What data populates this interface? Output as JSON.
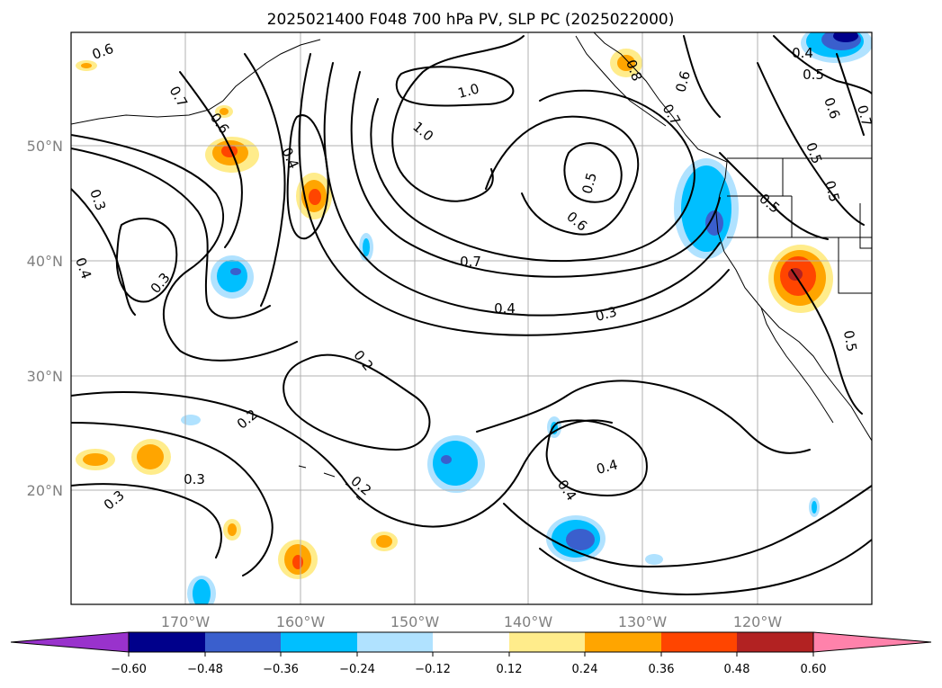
{
  "title": "2025021400 F048 700 hPa PV, SLP PC (2025022000)",
  "lon_labels": [
    "170°W",
    "160°W",
    "150°W",
    "140°W",
    "130°W",
    "120°W"
  ],
  "lat_labels": [
    "50°N",
    "40°N",
    "30°N",
    "20°N"
  ],
  "colorbar": {
    "ticks": [
      "−0.60",
      "−0.48",
      "−0.36",
      "−0.24",
      "−0.12",
      "0.12",
      "0.24",
      "0.36",
      "0.48",
      "0.60"
    ],
    "colors": [
      "#9932cc",
      "#00008b",
      "#3a5fcd",
      "#00bfff",
      "#b0e2ff",
      "#ffffff",
      "#ffec8b",
      "#ffa500",
      "#ff4500",
      "#b22222",
      "#ff82ab"
    ]
  },
  "contour_labels": [
    {
      "text": "0.6"
    },
    {
      "text": "0.7"
    },
    {
      "text": "0.6"
    },
    {
      "text": "0.4"
    },
    {
      "text": "0.3"
    },
    {
      "text": "0.4"
    },
    {
      "text": "0.3"
    },
    {
      "text": "1.0"
    },
    {
      "text": "1.0"
    },
    {
      "text": "0.5"
    },
    {
      "text": "0.6"
    },
    {
      "text": "0.7"
    },
    {
      "text": "0.4"
    },
    {
      "text": "0.3"
    },
    {
      "text": "0.2"
    },
    {
      "text": "0.2"
    },
    {
      "text": "0.3"
    },
    {
      "text": "0.3"
    },
    {
      "text": "0.2"
    },
    {
      "text": "0.4"
    },
    {
      "text": "0.4"
    },
    {
      "text": "0.6"
    },
    {
      "text": "0.4"
    },
    {
      "text": "0.5"
    },
    {
      "text": "0.6"
    },
    {
      "text": "0.5"
    },
    {
      "text": "0.5"
    },
    {
      "text": "0.5"
    },
    {
      "text": "0.7"
    },
    {
      "text": "0.5"
    },
    {
      "text": "0.8"
    },
    {
      "text": "0.7"
    }
  ]
}
